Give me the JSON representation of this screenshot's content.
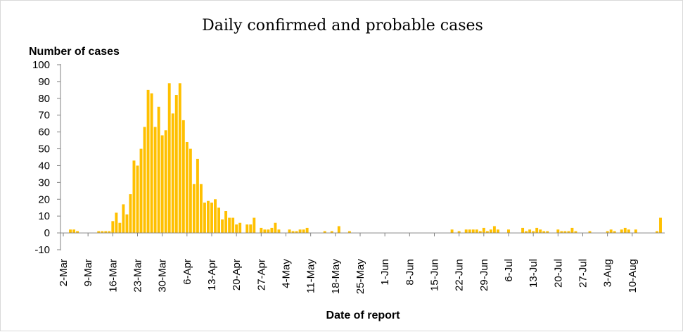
{
  "chart_data": {
    "type": "bar",
    "title": "Daily confirmed and probable cases",
    "ylabel": "Number of cases",
    "xlabel": "Date of report",
    "ylim": [
      -10,
      100
    ],
    "yticks": [
      -10,
      0,
      10,
      20,
      30,
      40,
      50,
      60,
      70,
      80,
      90,
      100
    ],
    "bar_color": "#FFC000",
    "start_date": "2-Mar",
    "x_tick_labels": [
      "2-Mar",
      "9-Mar",
      "16-Mar",
      "23-Mar",
      "30-Mar",
      "6-Apr",
      "13-Apr",
      "20-Apr",
      "27-Apr",
      "4-May",
      "11-May",
      "18-May",
      "25-May",
      "1-Jun",
      "8-Jun",
      "15-Jun",
      "22-Jun",
      "29-Jun",
      "6-Jul",
      "13-Jul",
      "20-Jul",
      "27-Jul",
      "3-Aug",
      "10-Aug"
    ],
    "x_tick_interval_days": 7,
    "values": [
      0,
      0,
      2,
      2,
      1,
      0,
      0,
      0,
      0,
      0,
      1,
      1,
      1,
      1,
      7,
      12,
      6,
      17,
      11,
      23,
      43,
      40,
      50,
      63,
      85,
      83,
      63,
      75,
      58,
      61,
      89,
      71,
      82,
      89,
      67,
      54,
      50,
      29,
      44,
      29,
      18,
      19,
      18,
      20,
      15,
      8,
      13,
      9,
      9,
      5,
      6,
      0,
      5,
      5,
      9,
      0,
      3,
      2,
      2,
      3,
      6,
      2,
      0,
      0,
      2,
      1,
      1,
      2,
      2,
      3,
      0,
      0,
      0,
      0,
      1,
      0,
      1,
      0,
      4,
      0,
      0,
      1,
      0,
      0,
      0,
      0,
      0,
      0,
      0,
      0,
      0,
      0,
      0,
      0,
      0,
      0,
      0,
      0,
      0,
      0,
      0,
      0,
      0,
      0,
      0,
      0,
      0,
      0,
      0,
      0,
      2,
      0,
      1,
      0,
      2,
      2,
      2,
      2,
      1,
      3,
      1,
      2,
      4,
      2,
      0,
      0,
      2,
      0,
      0,
      0,
      3,
      1,
      2,
      1,
      3,
      2,
      1,
      1,
      0,
      0,
      2,
      1,
      1,
      1,
      3,
      1,
      0,
      0,
      0,
      1,
      0,
      0,
      0,
      0,
      1,
      2,
      1,
      0,
      2,
      3,
      2,
      0,
      2,
      0,
      0,
      0,
      0,
      0,
      1,
      9
    ]
  }
}
